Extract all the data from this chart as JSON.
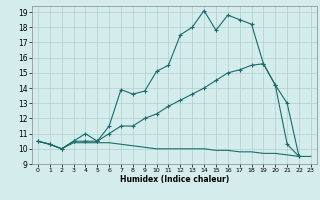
{
  "xlabel": "Humidex (Indice chaleur)",
  "bg_color": "#d4ecec",
  "grid_color": "#afd0d0",
  "line_color": "#1a6b6b",
  "xlim": [
    -0.5,
    23.5
  ],
  "ylim": [
    9,
    19.4
  ],
  "xticks": [
    0,
    1,
    2,
    3,
    4,
    5,
    6,
    7,
    8,
    9,
    10,
    11,
    12,
    13,
    14,
    15,
    16,
    17,
    18,
    19,
    20,
    21,
    22,
    23
  ],
  "yticks": [
    9,
    10,
    11,
    12,
    13,
    14,
    15,
    16,
    17,
    18,
    19
  ],
  "series1_x": [
    0,
    1,
    2,
    3,
    4,
    5,
    6,
    7,
    8,
    9,
    10,
    11,
    12,
    13,
    14,
    15,
    16,
    17,
    18,
    19,
    20,
    21,
    22
  ],
  "series1_y": [
    10.5,
    10.3,
    10.0,
    10.5,
    11.0,
    10.5,
    11.5,
    13.9,
    13.6,
    13.8,
    15.1,
    15.5,
    17.5,
    18.0,
    19.1,
    17.8,
    18.8,
    18.5,
    18.2,
    15.6,
    14.2,
    10.3,
    9.5
  ],
  "series2_x": [
    0,
    1,
    2,
    3,
    4,
    5,
    6,
    7,
    8,
    9,
    10,
    11,
    12,
    13,
    14,
    15,
    16,
    17,
    18,
    19,
    20,
    21,
    22
  ],
  "series2_y": [
    10.5,
    10.3,
    10.0,
    10.5,
    10.5,
    10.5,
    11.0,
    11.5,
    11.5,
    12.0,
    12.3,
    12.8,
    13.2,
    13.6,
    14.0,
    14.5,
    15.0,
    15.2,
    15.5,
    15.6,
    14.2,
    13.0,
    9.5
  ],
  "series3_x": [
    0,
    1,
    2,
    3,
    4,
    5,
    6,
    7,
    8,
    9,
    10,
    11,
    12,
    13,
    14,
    15,
    16,
    17,
    18,
    19,
    20,
    21,
    22,
    23
  ],
  "series3_y": [
    10.5,
    10.3,
    10.0,
    10.4,
    10.4,
    10.4,
    10.4,
    10.3,
    10.2,
    10.1,
    10.0,
    10.0,
    10.0,
    10.0,
    10.0,
    9.9,
    9.9,
    9.8,
    9.8,
    9.7,
    9.7,
    9.6,
    9.5,
    9.5
  ]
}
